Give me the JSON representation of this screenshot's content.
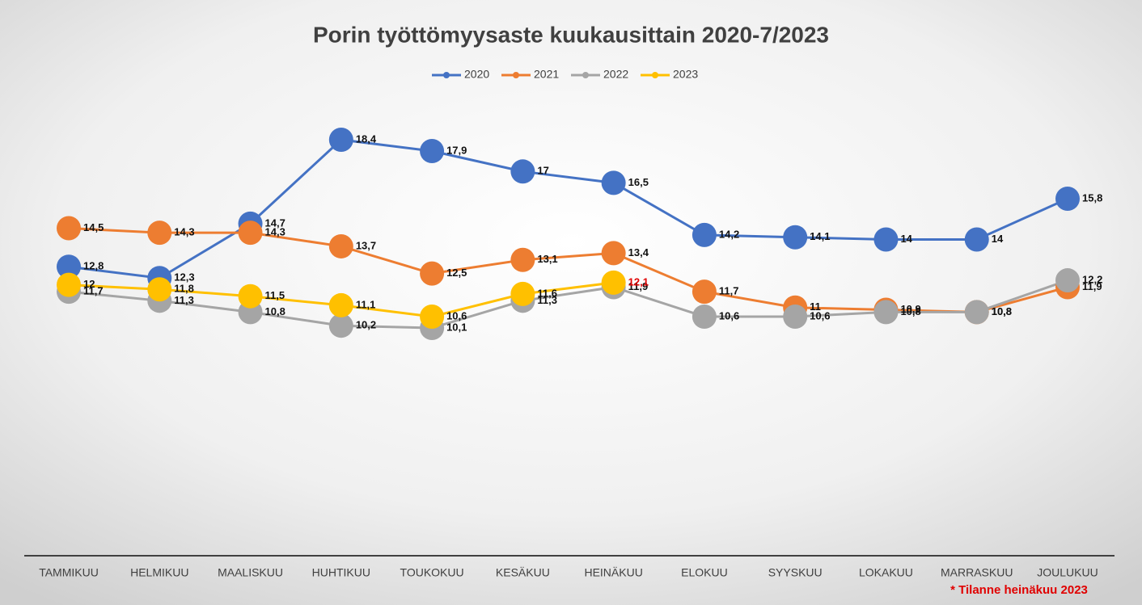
{
  "chart_data": {
    "type": "line",
    "title": "Porin työttömyysaste kuukausittain 2020-7/2023",
    "categories": [
      "TAMMIKUU",
      "HELMIKUU",
      "MAALISKUU",
      "HUHTIKUU",
      "TOUKOKUU",
      "KESÄKUU",
      "HEINÄKUU",
      "ELOKUU",
      "SYYSKUU",
      "LOKAKUU",
      "MARRASKUU",
      "JOULUKUU"
    ],
    "series": [
      {
        "name": "2020",
        "color": "#4472c4",
        "values": [
          12.8,
          12.3,
          14.7,
          18.4,
          17.9,
          17,
          16.5,
          14.2,
          14.1,
          14,
          14,
          15.8
        ],
        "value_labels": [
          "12,8",
          "12,3",
          "14,7",
          "18,4",
          "17,9",
          "17",
          "16,5",
          "14,2",
          "14,1",
          "14",
          "14",
          "15,8"
        ]
      },
      {
        "name": "2021",
        "color": "#ed7d31",
        "values": [
          14.5,
          14.3,
          14.3,
          13.7,
          12.5,
          13.1,
          13.4,
          11.7,
          11,
          10.9,
          10.8,
          11.9
        ],
        "value_labels": [
          "14,5",
          "14,3",
          "14,3",
          "13,7",
          "12,5",
          "13,1",
          "13,4",
          "11,7",
          "11",
          "10,9",
          "10,8",
          "11,9"
        ]
      },
      {
        "name": "2022",
        "color": "#a5a5a5",
        "values": [
          11.7,
          11.3,
          10.8,
          10.2,
          10.1,
          11.3,
          11.9,
          10.6,
          10.6,
          10.8,
          10.8,
          12.2
        ],
        "value_labels": [
          "11,7",
          "11,3",
          "10,8",
          "10,2",
          "10,1",
          "11,3",
          "11,9",
          "10,6",
          "10,6",
          "10,8",
          "10,8",
          "12,2"
        ]
      },
      {
        "name": "2023",
        "color": "#ffc000",
        "values": [
          12,
          11.8,
          11.5,
          11.1,
          10.6,
          11.6,
          12.1,
          null,
          null,
          null,
          null,
          null
        ],
        "value_labels": [
          "12",
          "11,8",
          "11,5",
          "11,1",
          "10,6",
          "11,6",
          "12,1",
          null,
          null,
          null,
          null,
          null
        ]
      }
    ],
    "annotation": "* Tilanne heinäkuu 2023"
  }
}
